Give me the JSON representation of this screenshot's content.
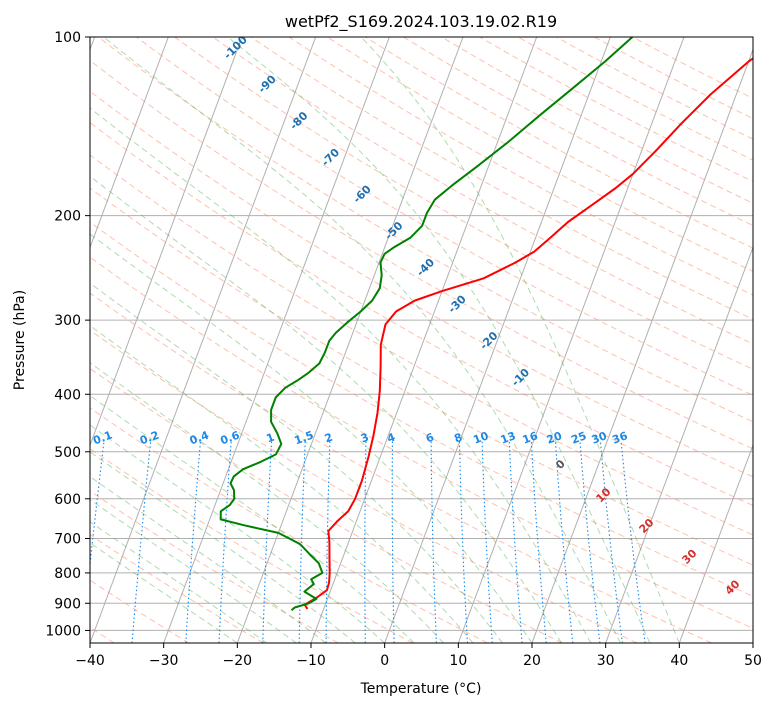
{
  "chart_data": {
    "type": "line",
    "title": "wetPf2_S169.2024.103.19.02.R19",
    "xlabel": "Temperature (°C)",
    "ylabel": "Pressure (hPa)",
    "xlim": [
      -40,
      50
    ],
    "ylim": [
      1050,
      100
    ],
    "y_scale": "log",
    "grid": true,
    "x_ticks": [
      -40,
      -30,
      -20,
      -10,
      0,
      10,
      20,
      30,
      40,
      50
    ],
    "y_ticks": [
      100,
      200,
      300,
      400,
      500,
      600,
      700,
      800,
      900,
      1000
    ],
    "skew_per_log10_decade_deg": 30,
    "series": [
      {
        "color": "#ff0000",
        "points": [
          [
            -12.2,
            920
          ],
          [
            -12.8,
            905
          ],
          [
            -11.5,
            880
          ],
          [
            -10.5,
            855
          ],
          [
            -10.6,
            830
          ],
          [
            -11.0,
            800
          ],
          [
            -11.7,
            760
          ],
          [
            -12.6,
            710
          ],
          [
            -13.3,
            680
          ],
          [
            -12.6,
            655
          ],
          [
            -11.6,
            630
          ],
          [
            -11.3,
            600
          ],
          [
            -11.3,
            560
          ],
          [
            -11.6,
            510
          ],
          [
            -12.0,
            470
          ],
          [
            -12.6,
            430
          ],
          [
            -13.4,
            395
          ],
          [
            -14.5,
            360
          ],
          [
            -15.6,
            330
          ],
          [
            -16.0,
            305
          ],
          [
            -15.2,
            290
          ],
          [
            -13.2,
            278
          ],
          [
            -10.0,
            268
          ],
          [
            -5.0,
            255
          ],
          [
            -1.5,
            240
          ],
          [
            0.5,
            230
          ],
          [
            2.0,
            218
          ],
          [
            3.6,
            205
          ],
          [
            6.0,
            192
          ],
          [
            8.3,
            180
          ],
          [
            10.0,
            170
          ],
          [
            12.0,
            155
          ],
          [
            14.0,
            140
          ],
          [
            16.5,
            125
          ],
          [
            20.0,
            110
          ],
          [
            22.0,
            104
          ],
          [
            24.0,
            100
          ]
        ]
      },
      {
        "color": "#008000",
        "points": [
          [
            -14.3,
            925
          ],
          [
            -14.0,
            915
          ],
          [
            -12.3,
            900
          ],
          [
            -11.5,
            885
          ],
          [
            -13.5,
            860
          ],
          [
            -12.6,
            835
          ],
          [
            -13.2,
            820
          ],
          [
            -12.0,
            800
          ],
          [
            -13.0,
            770
          ],
          [
            -14.6,
            745
          ],
          [
            -16.5,
            715
          ],
          [
            -20.0,
            685
          ],
          [
            -25.0,
            665
          ],
          [
            -28.5,
            650
          ],
          [
            -28.9,
            630
          ],
          [
            -28.0,
            615
          ],
          [
            -27.7,
            600
          ],
          [
            -28.2,
            580
          ],
          [
            -29.0,
            565
          ],
          [
            -28.9,
            550
          ],
          [
            -28.0,
            535
          ],
          [
            -26.0,
            520
          ],
          [
            -24.3,
            505
          ],
          [
            -24.1,
            485
          ],
          [
            -25.2,
            465
          ],
          [
            -26.6,
            445
          ],
          [
            -27.2,
            425
          ],
          [
            -27.2,
            405
          ],
          [
            -26.4,
            390
          ],
          [
            -25.0,
            378
          ],
          [
            -24.0,
            368
          ],
          [
            -23.0,
            355
          ],
          [
            -22.8,
            340
          ],
          [
            -22.8,
            325
          ],
          [
            -22.3,
            315
          ],
          [
            -21.3,
            303
          ],
          [
            -20.0,
            290
          ],
          [
            -19.0,
            278
          ],
          [
            -18.6,
            265
          ],
          [
            -19.0,
            252
          ],
          [
            -19.8,
            240
          ],
          [
            -19.7,
            232
          ],
          [
            -18.7,
            226
          ],
          [
            -17.0,
            218
          ],
          [
            -16.0,
            208
          ],
          [
            -16.0,
            198
          ],
          [
            -15.6,
            188
          ],
          [
            -14.0,
            178
          ],
          [
            -11.5,
            165
          ],
          [
            -8.5,
            150
          ],
          [
            -5.5,
            135
          ],
          [
            -2.5,
            122
          ],
          [
            0.5,
            110
          ],
          [
            3.0,
            100
          ]
        ]
      }
    ],
    "dry_adiabat_labels": [
      "-100",
      "-90",
      "-80",
      "-70",
      "-60",
      "-50",
      "-40",
      "-30",
      "-20",
      "-10"
    ],
    "mixing_ratio_labels": [
      "0.1",
      "0.2",
      "0.4",
      "0.6",
      "1",
      "1.5",
      "2",
      "3",
      "4",
      "6",
      "8",
      "10",
      "13",
      "16",
      "20",
      "25",
      "30",
      "36"
    ],
    "moist_adiabat_labels": [
      "0",
      "10",
      "20",
      "30",
      "40"
    ],
    "colors": {
      "temperature": "#ff0000",
      "dewpoint": "#008000",
      "isotherm": "#b0b0b0",
      "dry_adiabat": "#ff8c69",
      "moist_adiabat": "#4caf50",
      "mixing_ratio": "#1e88e5",
      "dry_adiabat_label": "#1f6fb0",
      "mixing_ratio_label": "#1e88e5",
      "moist_adiabat_label": "#d32f2f"
    }
  }
}
